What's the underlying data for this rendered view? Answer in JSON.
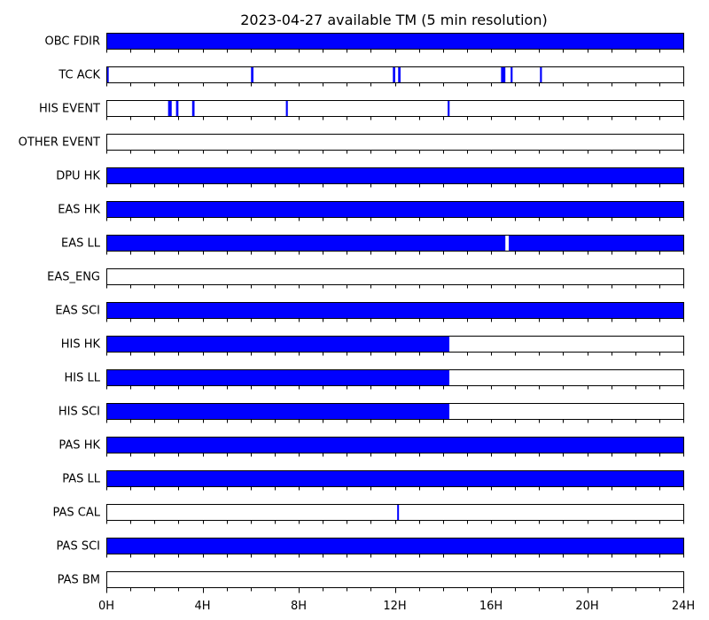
{
  "chart_data": {
    "type": "timeline",
    "title": "2023-04-27 available TM (5 min resolution)",
    "x_unit": "hours",
    "xlim": [
      0,
      24
    ],
    "x_ticks": [
      {
        "value": 0,
        "label": "0H"
      },
      {
        "value": 4,
        "label": "4H"
      },
      {
        "value": 8,
        "label": "8H"
      },
      {
        "value": 12,
        "label": "12H"
      },
      {
        "value": 16,
        "label": "16H"
      },
      {
        "value": 20,
        "label": "20H"
      },
      {
        "value": 24,
        "label": "24H"
      }
    ],
    "minor_tick_interval_hours": 1,
    "available_color": "#0000ff",
    "rows": [
      {
        "label": "OBC FDIR",
        "intervals": [
          [
            0,
            24
          ]
        ]
      },
      {
        "label": "TC ACK",
        "intervals": [
          [
            0,
            0.08
          ],
          [
            6.0,
            6.1
          ],
          [
            11.9,
            12.0
          ],
          [
            12.12,
            12.22
          ],
          [
            16.4,
            16.58
          ],
          [
            16.8,
            16.88
          ],
          [
            18.02,
            18.1
          ]
        ]
      },
      {
        "label": "HIS EVENT",
        "intervals": [
          [
            2.55,
            2.7
          ],
          [
            2.88,
            2.98
          ],
          [
            3.55,
            3.65
          ],
          [
            7.45,
            7.53
          ],
          [
            14.18,
            14.26
          ]
        ]
      },
      {
        "label": "OTHER EVENT",
        "intervals": []
      },
      {
        "label": "DPU HK",
        "intervals": [
          [
            0,
            24
          ]
        ]
      },
      {
        "label": "EAS HK",
        "intervals": [
          [
            0,
            24
          ]
        ]
      },
      {
        "label": "EAS LL",
        "intervals": [
          [
            0,
            16.58
          ],
          [
            16.72,
            24
          ]
        ]
      },
      {
        "label": "EAS_ENG",
        "intervals": []
      },
      {
        "label": "EAS SCI",
        "intervals": [
          [
            0,
            24
          ]
        ]
      },
      {
        "label": "HIS HK",
        "intervals": [
          [
            0,
            14.25
          ]
        ]
      },
      {
        "label": "HIS LL",
        "intervals": [
          [
            0,
            14.25
          ]
        ]
      },
      {
        "label": "HIS SCI",
        "intervals": [
          [
            0,
            14.25
          ]
        ]
      },
      {
        "label": "PAS HK",
        "intervals": [
          [
            0,
            24
          ]
        ]
      },
      {
        "label": "PAS LL",
        "intervals": [
          [
            0,
            24
          ]
        ]
      },
      {
        "label": "PAS CAL",
        "intervals": [
          [
            12.08,
            12.15
          ]
        ]
      },
      {
        "label": "PAS SCI",
        "intervals": [
          [
            0,
            24
          ]
        ]
      },
      {
        "label": "PAS BM",
        "intervals": []
      }
    ]
  }
}
